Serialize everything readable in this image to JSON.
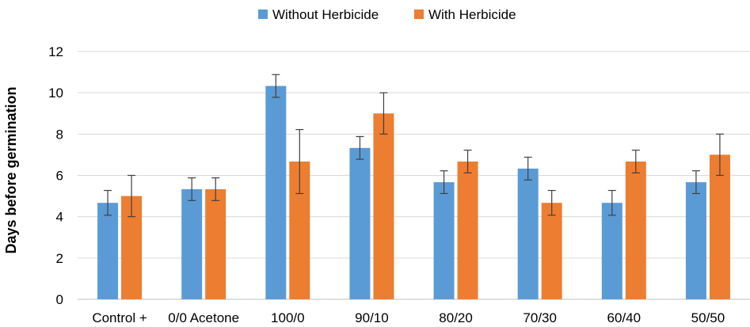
{
  "chart_data": {
    "type": "bar",
    "title": "",
    "xlabel": "",
    "ylabel": "Days before germination",
    "ylim": [
      0,
      12
    ],
    "yticks": [
      0,
      2,
      4,
      6,
      8,
      10,
      12
    ],
    "grid": true,
    "legend_position": "top",
    "categories": [
      "Control +",
      "0/0 Acetone",
      "100/0",
      "90/10",
      "80/20",
      "70/30",
      "60/40",
      "50/50"
    ],
    "series": [
      {
        "name": "Without Herbicide",
        "color": "#5b9bd5",
        "values": [
          4.67,
          5.33,
          10.33,
          7.33,
          5.67,
          6.33,
          4.67,
          5.67
        ],
        "errors": [
          0.6,
          0.55,
          0.55,
          0.55,
          0.55,
          0.55,
          0.6,
          0.55
        ]
      },
      {
        "name": "With Herbicide",
        "color": "#ed7d31",
        "values": [
          5.0,
          5.33,
          6.67,
          9.0,
          6.67,
          4.67,
          6.67,
          7.0
        ],
        "errors": [
          1.0,
          0.55,
          1.55,
          1.0,
          0.55,
          0.6,
          0.55,
          1.0
        ]
      }
    ]
  }
}
